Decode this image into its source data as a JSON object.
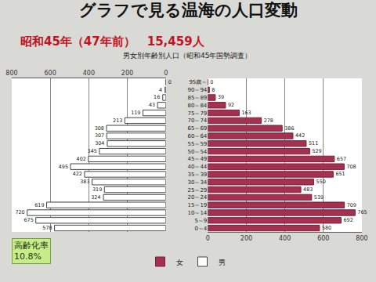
{
  "chart_data": {
    "type": "bar",
    "orientation": "horizontal",
    "title": "グラフで見る温海の人口変動",
    "subtitle": "昭和45年（47年前）　15,459人",
    "annotations": [
      "男女別年齢別人口（昭和45年国勢調査）",
      "高齢化率",
      "10.8%"
    ],
    "categories": [
      "95歳～",
      "90～94",
      "85～89",
      "80～84",
      "75～79",
      "70～74",
      "65～69",
      "60～64",
      "55～59",
      "50～54",
      "45～49",
      "40～44",
      "35～39",
      "30～34",
      "25～29",
      "20～24",
      "15～19",
      "10～14",
      "5～9",
      "0～4"
    ],
    "series": [
      {
        "name": "女",
        "color": "#a3314f",
        "values": [
          0,
          8,
          39,
          92,
          163,
          278,
          386,
          442,
          511,
          529,
          657,
          708,
          651,
          550,
          483,
          539,
          709,
          765,
          692,
          580
        ]
      },
      {
        "name": "男",
        "color": "#ffffff",
        "values": [
          0,
          4,
          16,
          43,
          119,
          213,
          308,
          307,
          304,
          345,
          402,
          495,
          422,
          383,
          319,
          324,
          619,
          720,
          675,
          578
        ]
      }
    ],
    "xlim": [
      0,
      800
    ],
    "xticks": [
      0,
      200,
      400,
      600,
      800
    ],
    "grid": true,
    "data_labels": true,
    "legend": "bottom"
  }
}
